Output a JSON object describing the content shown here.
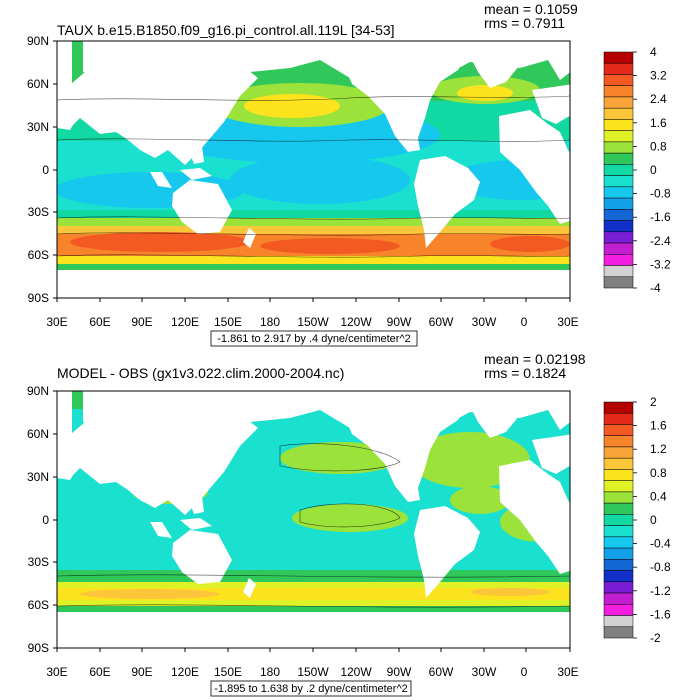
{
  "panels": [
    {
      "title": "TAUX b.e15.B1850.f09_g16.pi_control.all.119L [34-53]",
      "mean_label": "mean = 0.1059",
      "rms_label": "rms = 0.7911",
      "range_label": "-1.861 to 2.917 by .4 dyne/centimeter^2",
      "lat_ticks": [
        "90N",
        "60N",
        "30N",
        "0",
        "30S",
        "60S",
        "90S"
      ],
      "lon_ticks": [
        "30E",
        "60E",
        "90E",
        "120E",
        "150E",
        "180",
        "150W",
        "120W",
        "90W",
        "60W",
        "30W",
        "0",
        "30E"
      ],
      "colorbar": {
        "labels": [
          "4",
          "3.2",
          "2.4",
          "1.6",
          "0.8",
          "0",
          "-0.8",
          "-1.6",
          "-2.4",
          "-3.2",
          "-4"
        ],
        "colors": [
          "#b40000",
          "#e32a1a",
          "#f25a22",
          "#f7842b",
          "#f9a43a",
          "#fbc63a",
          "#fde31d",
          "#dff228",
          "#9be23a",
          "#30c85a",
          "#12d9a3",
          "#19e0cf",
          "#16c8ee",
          "#13a0e8",
          "#1466d4",
          "#1030c8",
          "#7a1ed6",
          "#c21fd0",
          "#f21ee0",
          "#d2d2d2",
          "#808080"
        ]
      }
    },
    {
      "title": "MODEL - OBS (gx1v3.022.clim.2000-2004.nc)",
      "mean_label": "mean = 0.02198",
      "rms_label": "rms = 0.1824",
      "range_label": "-1.895 to 1.638 by .2 dyne/centimeter^2",
      "lat_ticks": [
        "90N",
        "60N",
        "30N",
        "0",
        "30S",
        "60S",
        "90S"
      ],
      "lon_ticks": [
        "30E",
        "60E",
        "90E",
        "120E",
        "150E",
        "180",
        "150W",
        "120W",
        "90W",
        "60W",
        "30W",
        "0",
        "30E"
      ],
      "colorbar": {
        "labels": [
          "2",
          "1.6",
          "1.2",
          "0.8",
          "0.4",
          "0",
          "-0.4",
          "-0.8",
          "-1.2",
          "-1.6",
          "-2"
        ],
        "colors": [
          "#b40000",
          "#e32a1a",
          "#f25a22",
          "#f7842b",
          "#f9a43a",
          "#fbc63a",
          "#fde31d",
          "#dff228",
          "#9be23a",
          "#30c85a",
          "#12d9a3",
          "#19e0cf",
          "#16c8ee",
          "#13a0e8",
          "#1466d4",
          "#1030c8",
          "#7a1ed6",
          "#c21fd0",
          "#f21ee0",
          "#d2d2d2",
          "#808080"
        ]
      }
    }
  ]
}
